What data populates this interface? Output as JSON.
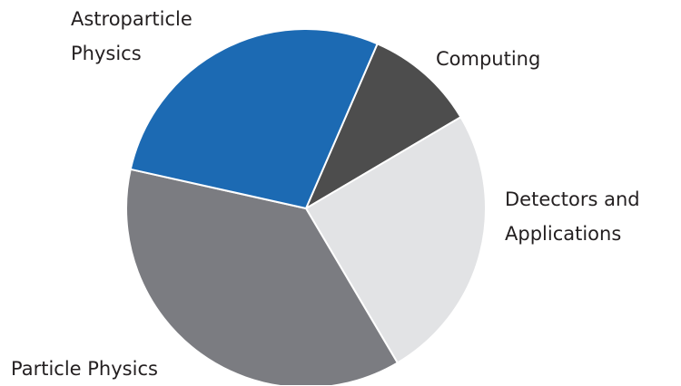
{
  "chart_data": {
    "type": "pie",
    "categories": [
      "Computing",
      "Detectors and Applications",
      "Particle Physics",
      "Astroparticle Physics"
    ],
    "values": [
      10,
      25,
      37,
      28
    ],
    "colors": [
      "#4d4d4d",
      "#e2e3e5",
      "#7b7c81",
      "#1c6ab3"
    ]
  }
}
